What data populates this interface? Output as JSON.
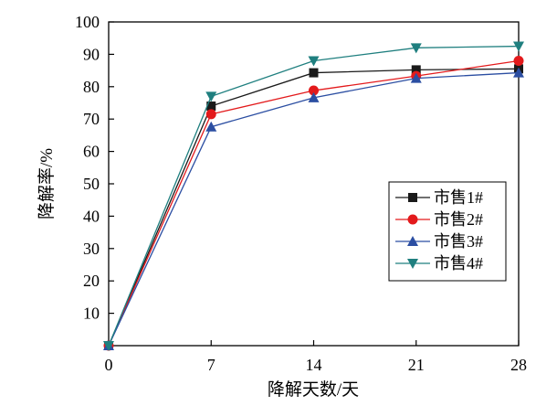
{
  "chart_data": {
    "type": "line",
    "xlabel": "降解天数/天",
    "ylabel": "降解率/%",
    "x": [
      0,
      7,
      14,
      21,
      28
    ],
    "xticks": [
      "0",
      "7",
      "14",
      "21",
      "28"
    ],
    "xlim": [
      0,
      28
    ],
    "yticks": [
      "10",
      "20",
      "30",
      "40",
      "50",
      "60",
      "70",
      "80",
      "90",
      "100"
    ],
    "ylim": [
      0,
      100
    ],
    "grid": false,
    "legend_position": "right",
    "series": [
      {
        "name": "市售1#",
        "marker": "square",
        "color": "#1a1a1a",
        "values": [
          0,
          74.0,
          84.3,
          85.2,
          85.5
        ]
      },
      {
        "name": "市售2#",
        "marker": "circle",
        "color": "#e31a1c",
        "values": [
          0,
          71.5,
          78.8,
          83.3,
          88.0
        ]
      },
      {
        "name": "市售3#",
        "marker": "triangle-up",
        "color": "#2b4ea2",
        "values": [
          0,
          67.6,
          76.6,
          82.6,
          84.3
        ]
      },
      {
        "name": "市售4#",
        "marker": "triangle-down",
        "color": "#1f7f7f",
        "values": [
          0,
          77.0,
          88.0,
          92.0,
          92.5
        ]
      }
    ]
  }
}
